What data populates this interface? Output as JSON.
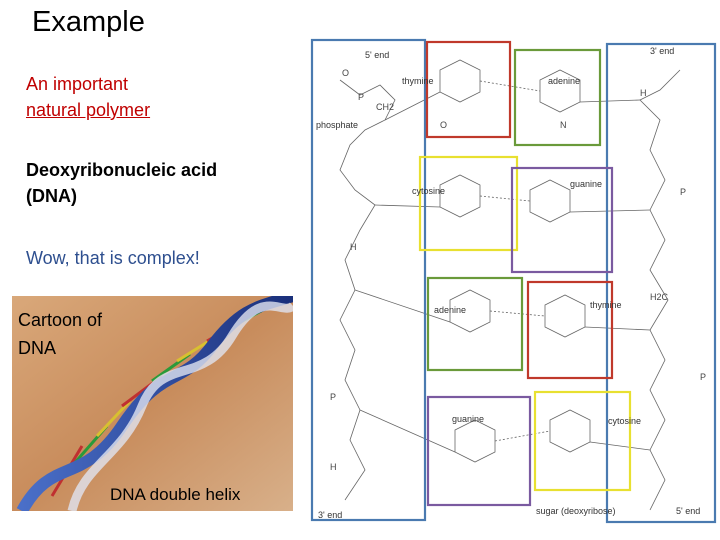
{
  "title": "Example",
  "text": {
    "line1": "An important",
    "line2": "natural polymer",
    "heading_line1": "Deoxyribonucleic acid",
    "heading_line2": "(DNA)",
    "remark": "Wow, that is complex!"
  },
  "image": {
    "caption_line1": "Cartoon of",
    "caption_line2": "DNA",
    "caption_bottom": "DNA double helix"
  },
  "diagram": {
    "labels": [
      "5' end",
      "thymine",
      "adenine",
      "phosphate",
      "cytosine",
      "guanine",
      "adenine",
      "thymine",
      "guanine",
      "cytosine",
      "sugar (deoxyribose)",
      "3' end",
      "3' end",
      "5' end"
    ]
  }
}
